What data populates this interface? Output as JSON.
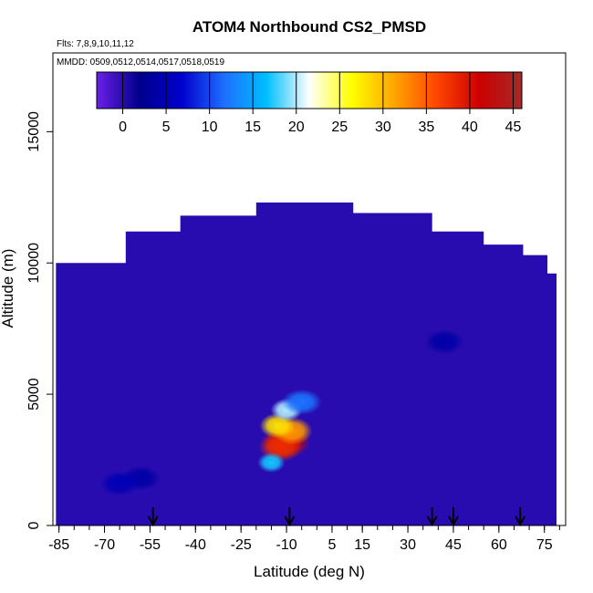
{
  "chart_data": {
    "type": "heatmap",
    "title": "ATOM4 Northbound CS2_PMSD",
    "flights_note": "Flts: 7,8,9,10,11,12",
    "dates_note": "MMDD: 0509,0512,0514,0517,0518,0519",
    "xlabel": "Latitude (deg N)",
    "ylabel": "Altitude (m)",
    "xlim": [
      -87,
      82
    ],
    "ylim": [
      0,
      18000
    ],
    "x_ticks": [
      -85,
      -70,
      -55,
      -40,
      -25,
      -10,
      5,
      15,
      30,
      45,
      60,
      75
    ],
    "y_ticks": [
      0,
      5000,
      10000,
      15000
    ],
    "colorbar": {
      "ticks": [
        0,
        5,
        10,
        15,
        20,
        25,
        30,
        35,
        40,
        45
      ],
      "range": [
        -3,
        46
      ],
      "colors": [
        "#6b1fe8",
        "#00008b",
        "#0000cd",
        "#1e6fff",
        "#00bfff",
        "#ffffff",
        "#ffff00",
        "#ffa500",
        "#ff4500",
        "#cc0000",
        "#a52a2a"
      ]
    },
    "background_value": 0,
    "field_extent": {
      "lat_min": -86,
      "lat_max": 79,
      "alt_bottom": 0,
      "alt_top_profile": [
        [
          -86,
          10000
        ],
        [
          -63,
          10000
        ],
        [
          -63,
          11200
        ],
        [
          -45,
          11200
        ],
        [
          -45,
          11800
        ],
        [
          -20,
          11800
        ],
        [
          -20,
          12300
        ],
        [
          12,
          12300
        ],
        [
          12,
          11900
        ],
        [
          38,
          11900
        ],
        [
          38,
          11200
        ],
        [
          55,
          11200
        ],
        [
          55,
          10700
        ],
        [
          68,
          10700
        ],
        [
          68,
          10300
        ],
        [
          76,
          10300
        ],
        [
          76,
          9600
        ],
        [
          79,
          9600
        ]
      ]
    },
    "anomalies": [
      {
        "lat": -10,
        "alt": 3200,
        "value": 42
      },
      {
        "lat": -12,
        "alt": 3000,
        "value": 38
      },
      {
        "lat": -8,
        "alt": 3600,
        "value": 32
      },
      {
        "lat": -13,
        "alt": 3800,
        "value": 28
      },
      {
        "lat": -10,
        "alt": 4400,
        "value": 20
      },
      {
        "lat": -15,
        "alt": 2400,
        "value": 17
      },
      {
        "lat": -5,
        "alt": 4700,
        "value": 12
      },
      {
        "lat": -58,
        "alt": 1800,
        "value": 4
      },
      {
        "lat": -65,
        "alt": 1600,
        "value": 5
      },
      {
        "lat": 42,
        "alt": 7000,
        "value": 4
      }
    ],
    "arrows_lat": [
      -54,
      -9,
      38,
      45,
      67
    ]
  }
}
